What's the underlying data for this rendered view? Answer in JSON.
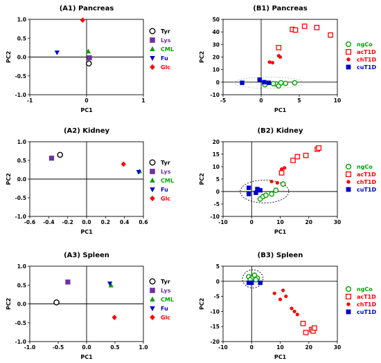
{
  "chart_data": [
    {
      "type": "scatter",
      "title": "(A1) Pancreas",
      "xlabel": "PC1",
      "ylabel": "PC2",
      "xlim": [
        -1,
        1
      ],
      "ylim": [
        -1,
        1
      ],
      "xticks": [
        "-1",
        "0",
        "1"
      ],
      "yticks": [
        "1.0",
        "0.5",
        "0.0",
        "-0.5",
        "-1.0"
      ],
      "grid": false,
      "legend": "right",
      "series": [
        {
          "name": "Tyr",
          "color": "#000000",
          "marker": "circle-open",
          "points": [
            [
              0.04,
              -0.17
            ]
          ]
        },
        {
          "name": "Lys",
          "color": "#7030a0",
          "marker": "square",
          "points": [
            [
              0.05,
              -0.02
            ]
          ]
        },
        {
          "name": "CML",
          "color": "#00a000",
          "marker": "triangle-up",
          "points": [
            [
              0.03,
              0.15
            ]
          ]
        },
        {
          "name": "Fu",
          "color": "#0000cc",
          "marker": "triangle-down",
          "points": [
            [
              -0.52,
              0.12
            ]
          ]
        },
        {
          "name": "Glc",
          "color": "#ff0000",
          "marker": "diamond",
          "points": [
            [
              -0.07,
              0.98
            ]
          ]
        }
      ]
    },
    {
      "type": "scatter",
      "title": "(B1) Pancreas",
      "xlabel": "PC1",
      "ylabel": "PC2",
      "xlim": [
        -5,
        10
      ],
      "ylim": [
        -10,
        50
      ],
      "xticks": [
        "-5",
        "0",
        "5",
        "10"
      ],
      "yticks": [
        "50",
        "40",
        "30",
        "20",
        "10",
        "0",
        "-10"
      ],
      "grid": false,
      "legend": "right",
      "series": [
        {
          "name": "ngCo",
          "color": "#00a000",
          "marker": "circle-open",
          "points": [
            [
              0.5,
              -2
            ],
            [
              2,
              -1.5
            ],
            [
              2.3,
              -3
            ],
            [
              2.6,
              -0.5
            ],
            [
              3.2,
              -1
            ],
            [
              4.4,
              -0.5
            ],
            [
              1.6,
              -1.2
            ]
          ]
        },
        {
          "name": "acT1D",
          "color": "#ff0000",
          "marker": "square-open",
          "points": [
            [
              2.3,
              27.5
            ],
            [
              4.1,
              42
            ],
            [
              4.5,
              41.5
            ],
            [
              5.7,
              44.5
            ],
            [
              7.3,
              43.5
            ],
            [
              9.1,
              37.5
            ]
          ]
        },
        {
          "name": "chT1D",
          "color": "#ff0000",
          "marker": "circle",
          "points": [
            [
              1.1,
              16
            ],
            [
              1.5,
              15.5
            ],
            [
              2.3,
              21
            ],
            [
              2.5,
              20
            ]
          ]
        },
        {
          "name": "cuT1D",
          "color": "#0000cc",
          "marker": "square",
          "points": [
            [
              -2.5,
              -0.5
            ],
            [
              -0.2,
              2
            ],
            [
              0.4,
              0
            ],
            [
              1,
              -0.5
            ]
          ]
        }
      ]
    },
    {
      "type": "scatter",
      "title": "(A2) Kidney",
      "xlabel": "PC1",
      "ylabel": "PC2",
      "xlim": [
        -0.6,
        0.6
      ],
      "ylim": [
        -1.0,
        1.0
      ],
      "xticks": [
        "-0.6",
        "-0.4",
        "-0.2",
        "0.0",
        "0.2",
        "0.4",
        "0.6"
      ],
      "yticks": [
        "1.0",
        "0.5",
        "0.0",
        "-0.5",
        "-1.0"
      ],
      "grid": false,
      "legend": "right",
      "series": [
        {
          "name": "Tyr",
          "color": "#000000",
          "marker": "circle-open",
          "points": [
            [
              -0.28,
              0.65
            ]
          ]
        },
        {
          "name": "Lys",
          "color": "#7030a0",
          "marker": "square",
          "points": [
            [
              -0.37,
              0.56
            ]
          ]
        },
        {
          "name": "CML",
          "color": "#00a000",
          "marker": "triangle-up",
          "points": [
            [
              0.56,
              0.21
            ]
          ]
        },
        {
          "name": "Fu",
          "color": "#0000cc",
          "marker": "triangle-down",
          "points": [
            [
              0.55,
              0.19
            ]
          ]
        },
        {
          "name": "Glc",
          "color": "#ff0000",
          "marker": "diamond",
          "points": [
            [
              0.39,
              0.4
            ]
          ]
        }
      ]
    },
    {
      "type": "scatter",
      "title": "(B2) Kidney",
      "xlabel": "PC1",
      "ylabel": "PC2",
      "xlim": [
        -10,
        30
      ],
      "ylim": [
        -10,
        20
      ],
      "xticks": [
        "-10",
        "0",
        "10",
        "20",
        "30"
      ],
      "yticks": [
        "20",
        "15",
        "10",
        "5",
        "0",
        "-5",
        "-10"
      ],
      "grid": false,
      "legend": "right",
      "series": [
        {
          "name": "ngCo",
          "color": "#00a000",
          "marker": "circle-open",
          "points": [
            [
              3,
              -3
            ],
            [
              4,
              -2
            ],
            [
              5,
              -1.5
            ],
            [
              7,
              -1
            ],
            [
              8.5,
              0.5
            ],
            [
              11,
              3
            ]
          ]
        },
        {
          "name": "acT1D",
          "color": "#ff0000",
          "marker": "square-open",
          "points": [
            [
              10.5,
              7.5
            ],
            [
              14.5,
              12.5
            ],
            [
              16,
              14
            ],
            [
              19,
              14.5
            ],
            [
              23,
              17
            ],
            [
              23.5,
              17.5
            ]
          ]
        },
        {
          "name": "chT1D",
          "color": "#ff0000",
          "marker": "circle",
          "points": [
            [
              9,
              3.5
            ],
            [
              10.5,
              9
            ],
            [
              11.5,
              9.5
            ],
            [
              7,
              4
            ]
          ]
        },
        {
          "name": "cuT1D",
          "color": "#0000cc",
          "marker": "square",
          "points": [
            [
              -1,
              1.5
            ],
            [
              -1,
              -1
            ],
            [
              1.5,
              -0.5
            ],
            [
              2,
              1
            ],
            [
              3,
              0.5
            ]
          ]
        }
      ]
    },
    {
      "type": "scatter",
      "title": "(A3) Spleen",
      "xlabel": "PC1",
      "ylabel": "PC2",
      "xlim": [
        -1.0,
        1.0
      ],
      "ylim": [
        -1.0,
        1.0
      ],
      "xticks": [
        "-1.0",
        "-0.5",
        "0.0",
        "0.5",
        "1.0"
      ],
      "yticks": [
        "1.0",
        "0.5",
        "0.0",
        "-0.5",
        "-1.0"
      ],
      "grid": false,
      "legend": "right",
      "series": [
        {
          "name": "Tyr",
          "color": "#000000",
          "marker": "circle-open",
          "points": [
            [
              -0.53,
              0.04
            ]
          ]
        },
        {
          "name": "Lys",
          "color": "#7030a0",
          "marker": "square",
          "points": [
            [
              -0.33,
              0.58
            ]
          ]
        },
        {
          "name": "CML",
          "color": "#00a000",
          "marker": "triangle-up",
          "points": [
            [
              0.43,
              0.49
            ]
          ]
        },
        {
          "name": "Fu",
          "color": "#0000cc",
          "marker": "triangle-down",
          "points": [
            [
              0.41,
              0.54
            ]
          ]
        },
        {
          "name": "Glc",
          "color": "#ff0000",
          "marker": "diamond",
          "points": [
            [
              0.49,
              -0.36
            ]
          ]
        }
      ]
    },
    {
      "type": "scatter",
      "title": "(B3) Spleen",
      "xlabel": "PC1",
      "ylabel": "PC2",
      "xlim": [
        -10,
        30
      ],
      "ylim": [
        -20,
        5
      ],
      "xticks": [
        "-10",
        "0",
        "10",
        "20",
        "30"
      ],
      "yticks": [
        "5",
        "0",
        "-5",
        "-10",
        "-15",
        "-20"
      ],
      "grid": false,
      "legend": "right",
      "series": [
        {
          "name": "ngCo",
          "color": "#00a000",
          "marker": "circle-open",
          "points": [
            [
              -1,
              1.5
            ],
            [
              0,
              1
            ],
            [
              1,
              2
            ],
            [
              2,
              1
            ],
            [
              -0.5,
              0.5
            ],
            [
              1.5,
              0.5
            ]
          ]
        },
        {
          "name": "acT1D",
          "color": "#ff0000",
          "marker": "square-open",
          "points": [
            [
              18,
              -14
            ],
            [
              19,
              -17
            ],
            [
              21,
              -16
            ],
            [
              21.5,
              -16.5
            ],
            [
              22,
              -15.5
            ]
          ]
        },
        {
          "name": "chT1D",
          "color": "#ff0000",
          "marker": "circle",
          "points": [
            [
              8,
              -4
            ],
            [
              10,
              -6
            ],
            [
              11,
              -3
            ],
            [
              12,
              -5
            ],
            [
              14,
              -9
            ],
            [
              15,
              -10
            ],
            [
              16,
              -11
            ]
          ]
        },
        {
          "name": "cuT1D",
          "color": "#0000cc",
          "marker": "square",
          "points": [
            [
              -1,
              -0.5
            ],
            [
              3,
              -0.5
            ],
            [
              0,
              -0.5
            ]
          ]
        }
      ]
    }
  ]
}
